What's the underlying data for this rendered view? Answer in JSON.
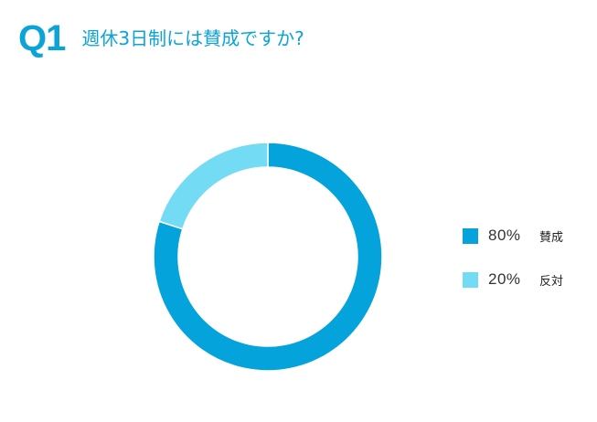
{
  "header": {
    "q_label": "Q1",
    "title": "週休3日制には賛成ですか?"
  },
  "colors": {
    "accent": "#0aa4d9",
    "slice_agree": "#05a3dc",
    "slice_disagree": "#74dbf4"
  },
  "chart_data": {
    "type": "pie",
    "donut": true,
    "categories": [
      "賛成",
      "反対"
    ],
    "values": [
      80,
      20
    ],
    "value_labels": [
      "80%",
      "20%"
    ],
    "colors": [
      "#05a3dc",
      "#74dbf4"
    ],
    "start_angle": "top",
    "direction": "clockwise",
    "legend_placement": "right"
  }
}
